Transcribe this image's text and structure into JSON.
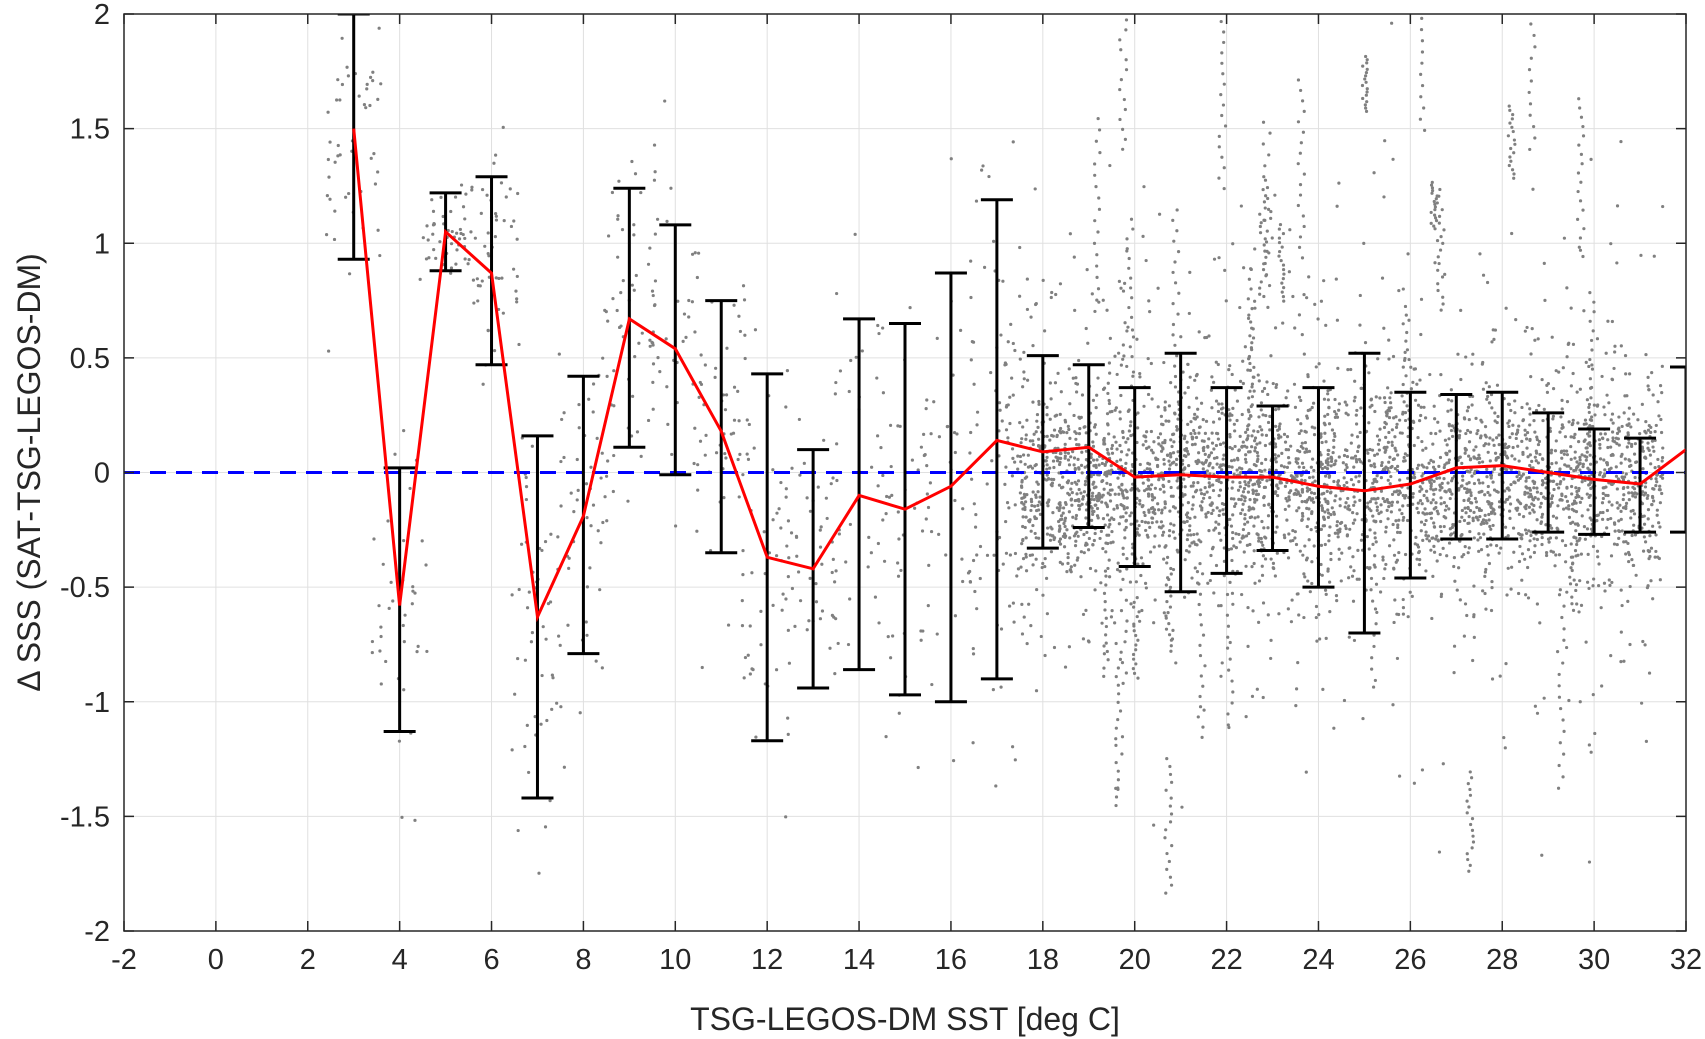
{
  "chart_data": {
    "type": "scatter",
    "title": "",
    "xlabel": "TSG-LEGOS-DM SST [deg C]",
    "ylabel": "Δ SSS (SAT-TSG-LEGOS-DM)",
    "xlim": [
      -2,
      32
    ],
    "ylim": [
      -2,
      2
    ],
    "xticks": [
      -2,
      0,
      2,
      4,
      6,
      8,
      10,
      12,
      14,
      16,
      18,
      20,
      22,
      24,
      26,
      28,
      30,
      32
    ],
    "yticks": [
      -2,
      -1.5,
      -1,
      -0.5,
      0,
      0.5,
      1,
      1.5,
      2
    ],
    "xtick_labels": [
      "-2",
      "0",
      "2",
      "4",
      "6",
      "8",
      "10",
      "12",
      "14",
      "16",
      "18",
      "20",
      "22",
      "24",
      "26",
      "28",
      "30",
      "32"
    ],
    "ytick_labels": [
      "-2",
      "-1.5",
      "-1",
      "-0.5",
      "0",
      "0.5",
      "1",
      "1.5",
      "2"
    ],
    "grid": true,
    "colors": {
      "scatter": "#808080",
      "mean_line": "#ff0000",
      "zero_line": "#0000ff",
      "error_bars": "#000000",
      "grid": "#e0e0e0",
      "axes": "#262626"
    },
    "scatter_points_description_density": {
      "dense_region_x": [
        17.5,
        31.5
      ],
      "dense_region_y": [
        -0.55,
        0.45
      ]
    },
    "reference_line": {
      "y": 0,
      "style": "dashed"
    },
    "binned_stats": {
      "x": [
        3,
        4,
        5,
        6,
        7,
        8,
        9,
        10,
        11,
        12,
        13,
        14,
        15,
        16,
        17,
        18,
        19,
        20,
        21,
        22,
        23,
        24,
        25,
        26,
        27,
        28,
        29,
        30,
        31,
        32
      ],
      "mean": [
        1.5,
        -0.58,
        1.05,
        0.87,
        -0.63,
        -0.19,
        0.67,
        0.54,
        0.18,
        -0.37,
        -0.42,
        -0.1,
        -0.16,
        -0.06,
        0.14,
        0.09,
        0.11,
        -0.02,
        -0.01,
        -0.02,
        -0.02,
        -0.06,
        -0.08,
        -0.05,
        0.02,
        0.03,
        0.0,
        -0.03,
        -0.05,
        0.1
      ],
      "upper": [
        2.0,
        0.02,
        1.22,
        1.29,
        0.16,
        0.42,
        1.24,
        1.08,
        0.75,
        0.43,
        0.1,
        0.67,
        0.65,
        0.87,
        1.19,
        0.51,
        0.47,
        0.37,
        0.52,
        0.37,
        0.29,
        0.37,
        0.52,
        0.35,
        0.34,
        0.35,
        0.26,
        0.19,
        0.15,
        0.46
      ],
      "lower": [
        0.93,
        -1.13,
        0.88,
        0.47,
        -1.42,
        -0.79,
        0.11,
        -0.01,
        -0.35,
        -1.17,
        -0.94,
        -0.86,
        -0.97,
        -1.0,
        -0.9,
        -0.33,
        -0.24,
        -0.41,
        -0.52,
        -0.44,
        -0.34,
        -0.5,
        -0.7,
        -0.46,
        -0.29,
        -0.29,
        -0.26,
        -0.27,
        -0.26,
        -0.26
      ]
    }
  }
}
